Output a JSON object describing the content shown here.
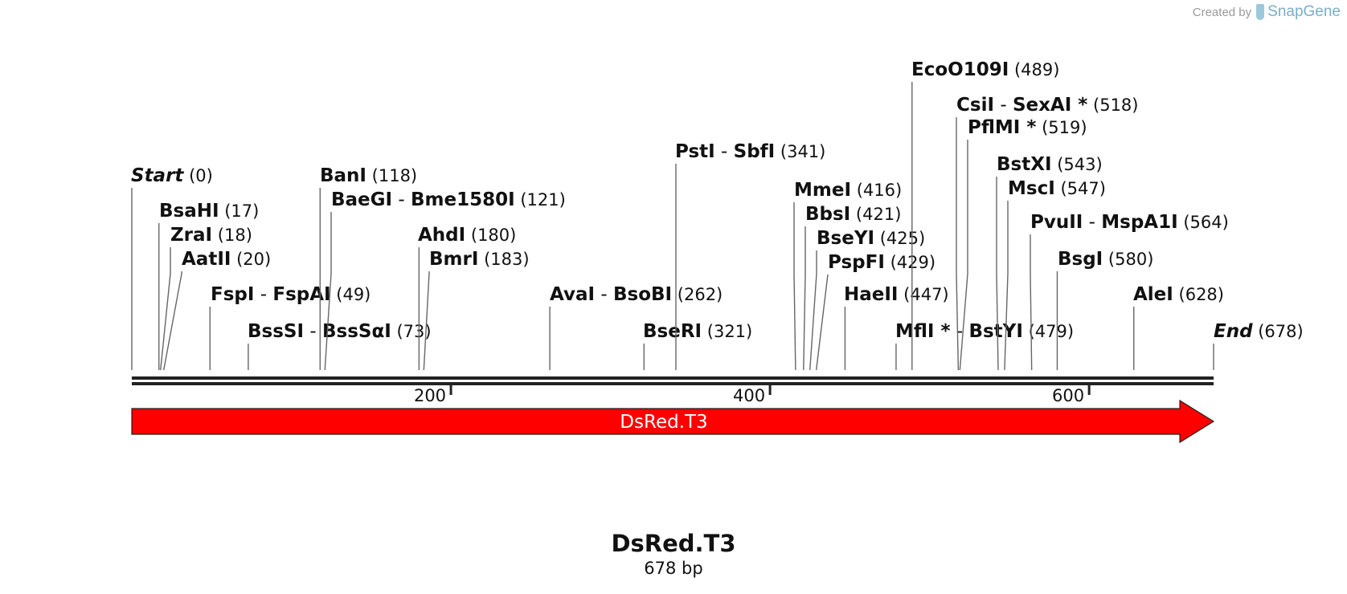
{
  "credit": {
    "prefix": "Created by",
    "brand": "SnapGene"
  },
  "sequence": {
    "name": "DsRed.T3",
    "length_label": "678 bp",
    "length": 678
  },
  "feature": {
    "label": "DsRed.T3",
    "start": 0,
    "end": 678,
    "color": "#ff0000"
  },
  "ruler_ticks": [
    200,
    400,
    600
  ],
  "sites": [
    {
      "names": [
        "Start"
      ],
      "pos": 0,
      "pos_label": "(0)",
      "italic": true
    },
    {
      "names": [
        "BsaHI"
      ],
      "pos": 17,
      "pos_label": "(17)"
    },
    {
      "names": [
        "ZraI"
      ],
      "pos": 18,
      "pos_label": "(18)"
    },
    {
      "names": [
        "AatII"
      ],
      "pos": 20,
      "pos_label": "(20)"
    },
    {
      "names": [
        "FspI",
        "FspAI"
      ],
      "pos": 49,
      "pos_label": "(49)"
    },
    {
      "names": [
        "BssSI",
        "BssSαI"
      ],
      "pos": 73,
      "pos_label": "(73)"
    },
    {
      "names": [
        "BanI"
      ],
      "pos": 118,
      "pos_label": "(118)"
    },
    {
      "names": [
        "BaeGI",
        "Bme1580I"
      ],
      "pos": 121,
      "pos_label": "(121)"
    },
    {
      "names": [
        "AhdI"
      ],
      "pos": 180,
      "pos_label": "(180)"
    },
    {
      "names": [
        "BmrI"
      ],
      "pos": 183,
      "pos_label": "(183)"
    },
    {
      "names": [
        "AvaI",
        "BsoBI"
      ],
      "pos": 262,
      "pos_label": "(262)"
    },
    {
      "names": [
        "BseRI"
      ],
      "pos": 321,
      "pos_label": "(321)"
    },
    {
      "names": [
        "PstI",
        "SbfI"
      ],
      "pos": 341,
      "pos_label": "(341)"
    },
    {
      "names": [
        "MmeI"
      ],
      "pos": 416,
      "pos_label": "(416)"
    },
    {
      "names": [
        "BbsI"
      ],
      "pos": 421,
      "pos_label": "(421)"
    },
    {
      "names": [
        "BseYI"
      ],
      "pos": 425,
      "pos_label": "(425)"
    },
    {
      "names": [
        "PspFI"
      ],
      "pos": 429,
      "pos_label": "(429)"
    },
    {
      "names": [
        "HaeII"
      ],
      "pos": 447,
      "pos_label": "(447)"
    },
    {
      "names": [
        "MflI *",
        "BstYI"
      ],
      "pos": 479,
      "pos_label": "(479)"
    },
    {
      "names": [
        "EcoO109I"
      ],
      "pos": 489,
      "pos_label": "(489)"
    },
    {
      "names": [
        "CsiI",
        "SexAI *"
      ],
      "pos": 518,
      "pos_label": "(518)"
    },
    {
      "names": [
        "PflMI *"
      ],
      "pos": 519,
      "pos_label": "(519)"
    },
    {
      "names": [
        "BstXI"
      ],
      "pos": 543,
      "pos_label": "(543)"
    },
    {
      "names": [
        "MscI"
      ],
      "pos": 547,
      "pos_label": "(547)"
    },
    {
      "names": [
        "PvuII",
        "MspA1I"
      ],
      "pos": 564,
      "pos_label": "(564)"
    },
    {
      "names": [
        "BsgI"
      ],
      "pos": 580,
      "pos_label": "(580)"
    },
    {
      "names": [
        "AleI"
      ],
      "pos": 628,
      "pos_label": "(628)"
    },
    {
      "names": [
        "End"
      ],
      "pos": 678,
      "pos_label": "(678)",
      "italic": true
    }
  ]
}
